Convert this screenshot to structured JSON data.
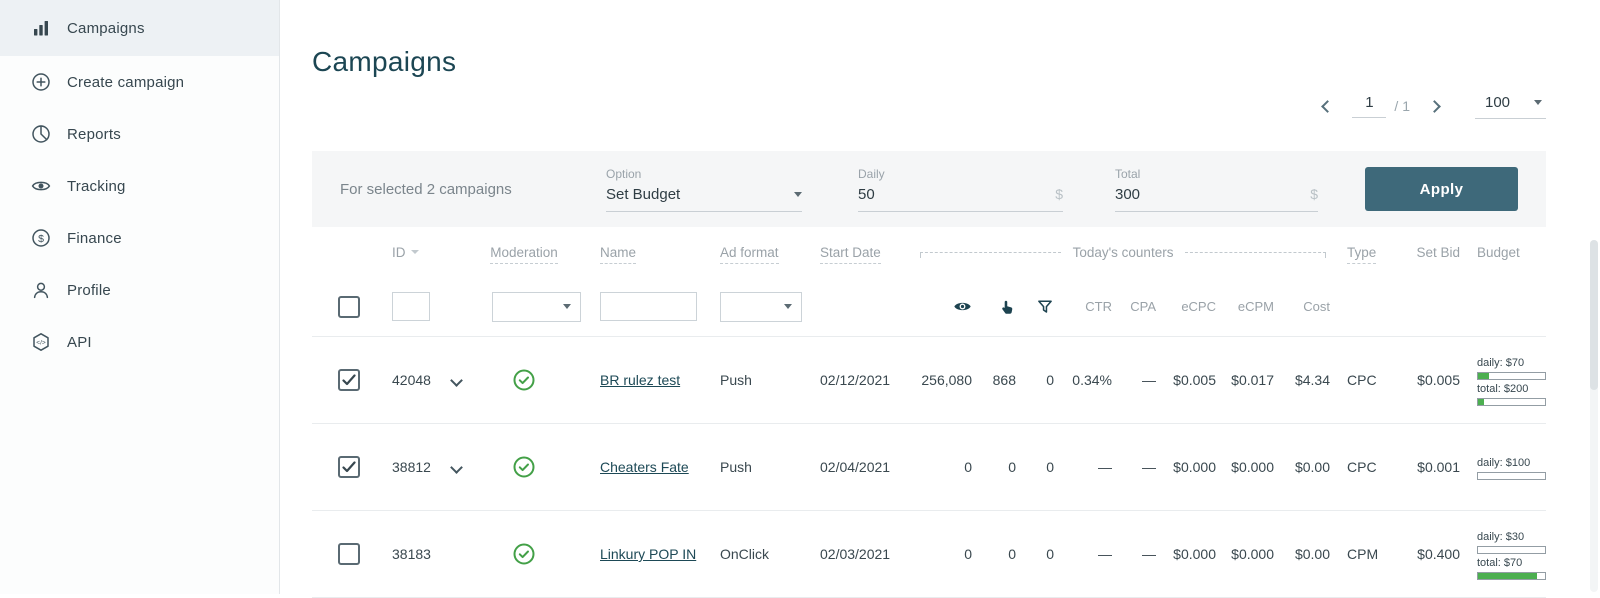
{
  "colors": {
    "primary_button": "#3e697a",
    "success_green": "#43a047",
    "title_text": "#1c4653",
    "link_text": "#1d4956",
    "progress_fill": "#4caf50"
  },
  "sidebar": {
    "items": [
      {
        "label": "Campaigns",
        "icon": "bar-chart-icon",
        "active": true
      },
      {
        "label": "Create campaign",
        "icon": "plus-circle-icon",
        "active": false
      },
      {
        "label": "Reports",
        "icon": "pie-chart-icon",
        "active": false
      },
      {
        "label": "Tracking",
        "icon": "eye-icon",
        "active": false
      },
      {
        "label": "Finance",
        "icon": "dollar-circle-icon",
        "active": false
      },
      {
        "label": "Profile",
        "icon": "person-icon",
        "active": false
      },
      {
        "label": "API",
        "icon": "hexagon-code-icon",
        "active": false
      }
    ]
  },
  "page": {
    "title": "Campaigns"
  },
  "pagination": {
    "current_page": "1",
    "of_pages": "/ 1",
    "page_size": "100"
  },
  "bulk_actions": {
    "selected_text": "For selected 2 campaigns",
    "option_label": "Option",
    "option_value": "Set Budget",
    "daily_label": "Daily",
    "daily_value": "50",
    "daily_suffix": "$",
    "total_label": "Total",
    "total_value": "300",
    "total_suffix": "$",
    "apply_label": "Apply"
  },
  "filters": {
    "id": "",
    "name": ""
  },
  "table": {
    "columns": {
      "id": "ID",
      "moderation": "Moderation",
      "name": "Name",
      "ad_format": "Ad format",
      "start_date": "Start Date",
      "todays_counters": "Today's counters",
      "type": "Type",
      "set_bid": "Set Bid",
      "budget": "Budget"
    },
    "counter_columns": {
      "ctr": "CTR",
      "cpa": "CPA",
      "ecpc": "eCPC",
      "ecpm": "eCPM",
      "cost": "Cost"
    },
    "counter_icons": [
      "eye-icon",
      "tap-icon",
      "filter-funnel-icon"
    ],
    "rows": [
      {
        "checked": true,
        "expandable": true,
        "moderation": "approved",
        "id": "42048",
        "name": "BR rulez test",
        "ad_format": "Push",
        "start_date": "02/12/2021",
        "impressions": "256,080",
        "clicks": "868",
        "conversions": "0",
        "ctr": "0.34%",
        "cpa": "—",
        "ecpc": "$0.005",
        "ecpm": "$0.017",
        "cost": "$4.34",
        "type": "CPC",
        "set_bid": "$0.005",
        "budget": {
          "daily_label": "daily: $70",
          "daily_fill": "16%",
          "total_label": "total: $200",
          "total_fill": "9%"
        }
      },
      {
        "checked": true,
        "expandable": true,
        "moderation": "approved",
        "id": "38812",
        "name": "Cheaters Fate",
        "ad_format": "Push",
        "start_date": "02/04/2021",
        "impressions": "0",
        "clicks": "0",
        "conversions": "0",
        "ctr": "—",
        "cpa": "—",
        "ecpc": "$0.000",
        "ecpm": "$0.000",
        "cost": "$0.00",
        "type": "CPC",
        "set_bid": "$0.001",
        "budget": {
          "daily_label": "daily: $100",
          "daily_fill": "0%"
        }
      },
      {
        "checked": false,
        "expandable": false,
        "moderation": "approved",
        "id": "38183",
        "name": "Linkury POP IN",
        "ad_format": "OnClick",
        "start_date": "02/03/2021",
        "impressions": "0",
        "clicks": "0",
        "conversions": "0",
        "ctr": "—",
        "cpa": "—",
        "ecpc": "$0.000",
        "ecpm": "$0.000",
        "cost": "$0.00",
        "type": "CPM",
        "set_bid": "$0.400",
        "budget": {
          "daily_label": "daily: $30",
          "daily_fill": "0%",
          "total_label": "total: $70",
          "total_fill": "88%"
        }
      }
    ]
  }
}
